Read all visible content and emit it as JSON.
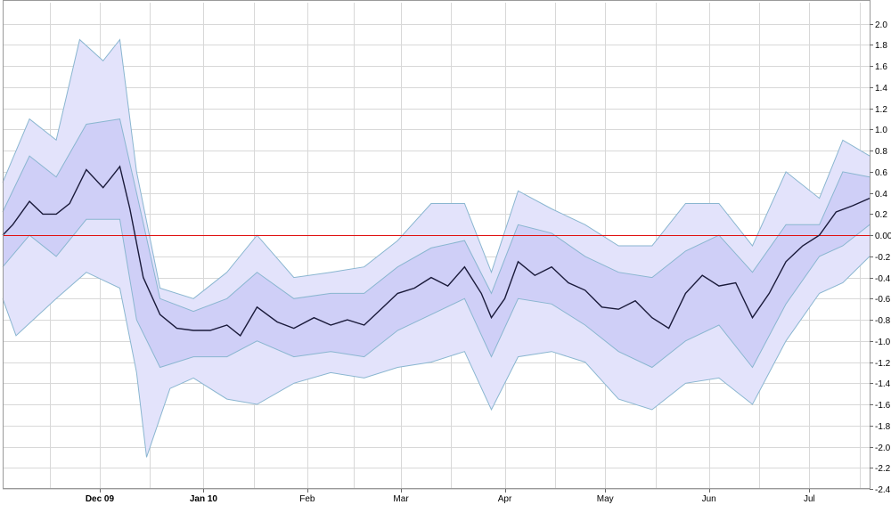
{
  "chart_data": {
    "type": "area",
    "title": "",
    "xlabel": "",
    "ylabel": "",
    "x_domain": [
      "2009-11-02",
      "2010-07-19"
    ],
    "ylim": [
      -2.4,
      2.2
    ],
    "yticks": [
      2.0,
      1.8,
      1.6,
      1.4,
      1.2,
      1.0,
      0.8,
      0.6,
      0.4,
      0.2,
      0.0,
      -0.2,
      -0.4,
      -0.6,
      -0.8,
      -1.0,
      -1.2,
      -1.4,
      -1.6,
      -1.8,
      -2.0,
      -2.2,
      -2.4
    ],
    "ytick_labels": [
      "2.0",
      "1.8",
      "1.6",
      "1.4",
      "1.2",
      "1.0",
      "0.8",
      "0.6",
      "0.4",
      "0.2",
      "0.00",
      "-0.2",
      "-0.4",
      "-0.6",
      "-0.8",
      "-1.0",
      "-1.2",
      "-1.4",
      "-1.6",
      "-1.8",
      "-2.0",
      "-2.2",
      "-2.4"
    ],
    "xticks": [
      {
        "date": "2009-12-01",
        "label": "Dec 09",
        "major": true
      },
      {
        "date": "2010-01-01",
        "label": "Jan 10",
        "major": true
      },
      {
        "date": "2010-02-01",
        "label": "Feb",
        "major": false
      },
      {
        "date": "2010-03-01",
        "label": "Mar",
        "major": false
      },
      {
        "date": "2010-04-01",
        "label": "Apr",
        "major": false
      },
      {
        "date": "2010-05-01",
        "label": "May",
        "major": false
      },
      {
        "date": "2010-06-01",
        "label": "Jun",
        "major": false
      },
      {
        "date": "2010-07-01",
        "label": "Jul",
        "major": false
      }
    ],
    "minor_gridlines_dates": [
      "2009-11-16",
      "2009-12-16",
      "2010-01-16",
      "2010-02-15",
      "2010-03-16",
      "2010-04-16",
      "2010-05-16",
      "2010-06-16",
      "2010-07-16"
    ],
    "zero_line": 0.0,
    "grid": true,
    "y_axis_side": "right",
    "colors": {
      "outer_band": "#e3e3fb",
      "inner_band": "#cfcff7",
      "band_edge": "#8ab6d0",
      "mean_line": "#1a1a3a",
      "zero_line": "#e01010",
      "grid": "#d8d8d8"
    },
    "series": [
      {
        "role": "mean",
        "points": [
          [
            "2009-11-02",
            0.0
          ],
          [
            "2009-11-05",
            0.1
          ],
          [
            "2009-11-10",
            0.32
          ],
          [
            "2009-11-14",
            0.2
          ],
          [
            "2009-11-18",
            0.2
          ],
          [
            "2009-11-22",
            0.3
          ],
          [
            "2009-11-27",
            0.62
          ],
          [
            "2009-12-02",
            0.45
          ],
          [
            "2009-12-07",
            0.65
          ],
          [
            "2009-12-10",
            0.25
          ],
          [
            "2009-12-14",
            -0.4
          ],
          [
            "2009-12-19",
            -0.75
          ],
          [
            "2009-12-24",
            -0.88
          ],
          [
            "2009-12-29",
            -0.9
          ],
          [
            "2010-01-03",
            -0.9
          ],
          [
            "2010-01-08",
            -0.85
          ],
          [
            "2010-01-12",
            -0.95
          ],
          [
            "2010-01-17",
            -0.68
          ],
          [
            "2010-01-23",
            -0.82
          ],
          [
            "2010-01-28",
            -0.88
          ],
          [
            "2010-02-03",
            -0.78
          ],
          [
            "2010-02-08",
            -0.85
          ],
          [
            "2010-02-13",
            -0.8
          ],
          [
            "2010-02-18",
            -0.85
          ],
          [
            "2010-02-23",
            -0.7
          ],
          [
            "2010-02-28",
            -0.55
          ],
          [
            "2010-03-05",
            -0.5
          ],
          [
            "2010-03-10",
            -0.4
          ],
          [
            "2010-03-15",
            -0.48
          ],
          [
            "2010-03-20",
            -0.3
          ],
          [
            "2010-03-25",
            -0.55
          ],
          [
            "2010-03-28",
            -0.78
          ],
          [
            "2010-04-01",
            -0.6
          ],
          [
            "2010-04-05",
            -0.25
          ],
          [
            "2010-04-10",
            -0.38
          ],
          [
            "2010-04-15",
            -0.3
          ],
          [
            "2010-04-20",
            -0.45
          ],
          [
            "2010-04-25",
            -0.52
          ],
          [
            "2010-04-30",
            -0.68
          ],
          [
            "2010-05-05",
            -0.7
          ],
          [
            "2010-05-10",
            -0.62
          ],
          [
            "2010-05-15",
            -0.78
          ],
          [
            "2010-05-20",
            -0.88
          ],
          [
            "2010-05-25",
            -0.55
          ],
          [
            "2010-05-30",
            -0.38
          ],
          [
            "2010-06-04",
            -0.48
          ],
          [
            "2010-06-09",
            -0.45
          ],
          [
            "2010-06-14",
            -0.78
          ],
          [
            "2010-06-19",
            -0.55
          ],
          [
            "2010-06-24",
            -0.25
          ],
          [
            "2010-06-29",
            -0.1
          ],
          [
            "2010-07-04",
            0.0
          ],
          [
            "2010-07-09",
            0.22
          ],
          [
            "2010-07-14",
            0.28
          ],
          [
            "2010-07-19",
            0.35
          ]
        ]
      },
      {
        "role": "inner_band",
        "upper": [
          [
            "2009-11-02",
            0.22
          ],
          [
            "2009-11-10",
            0.75
          ],
          [
            "2009-11-18",
            0.55
          ],
          [
            "2009-11-27",
            1.05
          ],
          [
            "2009-12-07",
            1.1
          ],
          [
            "2009-12-12",
            0.4
          ],
          [
            "2009-12-19",
            -0.6
          ],
          [
            "2009-12-29",
            -0.72
          ],
          [
            "2010-01-08",
            -0.6
          ],
          [
            "2010-01-17",
            -0.35
          ],
          [
            "2010-01-28",
            -0.6
          ],
          [
            "2010-02-08",
            -0.55
          ],
          [
            "2010-02-18",
            -0.55
          ],
          [
            "2010-02-28",
            -0.3
          ],
          [
            "2010-03-10",
            -0.12
          ],
          [
            "2010-03-20",
            -0.05
          ],
          [
            "2010-03-28",
            -0.55
          ],
          [
            "2010-04-05",
            0.1
          ],
          [
            "2010-04-15",
            0.02
          ],
          [
            "2010-04-25",
            -0.2
          ],
          [
            "2010-05-05",
            -0.35
          ],
          [
            "2010-05-15",
            -0.4
          ],
          [
            "2010-05-25",
            -0.15
          ],
          [
            "2010-06-04",
            0.0
          ],
          [
            "2010-06-14",
            -0.35
          ],
          [
            "2010-06-24",
            0.1
          ],
          [
            "2010-07-04",
            0.1
          ],
          [
            "2010-07-11",
            0.6
          ],
          [
            "2010-07-19",
            0.55
          ]
        ],
        "lower": [
          [
            "2009-11-02",
            -0.3
          ],
          [
            "2009-11-10",
            0.0
          ],
          [
            "2009-11-18",
            -0.2
          ],
          [
            "2009-11-27",
            0.15
          ],
          [
            "2009-12-07",
            0.15
          ],
          [
            "2009-12-12",
            -0.8
          ],
          [
            "2009-12-19",
            -1.25
          ],
          [
            "2009-12-29",
            -1.15
          ],
          [
            "2010-01-08",
            -1.15
          ],
          [
            "2010-01-17",
            -1.0
          ],
          [
            "2010-01-28",
            -1.15
          ],
          [
            "2010-02-08",
            -1.1
          ],
          [
            "2010-02-18",
            -1.15
          ],
          [
            "2010-02-28",
            -0.9
          ],
          [
            "2010-03-10",
            -0.75
          ],
          [
            "2010-03-20",
            -0.6
          ],
          [
            "2010-03-28",
            -1.15
          ],
          [
            "2010-04-05",
            -0.6
          ],
          [
            "2010-04-15",
            -0.65
          ],
          [
            "2010-04-25",
            -0.85
          ],
          [
            "2010-05-05",
            -1.1
          ],
          [
            "2010-05-15",
            -1.25
          ],
          [
            "2010-05-25",
            -1.0
          ],
          [
            "2010-06-04",
            -0.85
          ],
          [
            "2010-06-14",
            -1.25
          ],
          [
            "2010-06-24",
            -0.65
          ],
          [
            "2010-07-04",
            -0.2
          ],
          [
            "2010-07-11",
            -0.1
          ],
          [
            "2010-07-19",
            0.1
          ]
        ]
      },
      {
        "role": "outer_band",
        "upper": [
          [
            "2009-11-02",
            0.5
          ],
          [
            "2009-11-10",
            1.1
          ],
          [
            "2009-11-18",
            0.9
          ],
          [
            "2009-11-25",
            1.85
          ],
          [
            "2009-12-02",
            1.65
          ],
          [
            "2009-12-07",
            1.85
          ],
          [
            "2009-12-12",
            0.6
          ],
          [
            "2009-12-19",
            -0.5
          ],
          [
            "2009-12-29",
            -0.6
          ],
          [
            "2010-01-08",
            -0.35
          ],
          [
            "2010-01-17",
            -0.0
          ],
          [
            "2010-01-28",
            -0.4
          ],
          [
            "2010-02-08",
            -0.35
          ],
          [
            "2010-02-18",
            -0.3
          ],
          [
            "2010-02-28",
            -0.05
          ],
          [
            "2010-03-10",
            0.3
          ],
          [
            "2010-03-20",
            0.3
          ],
          [
            "2010-03-28",
            -0.35
          ],
          [
            "2010-04-05",
            0.42
          ],
          [
            "2010-04-15",
            0.25
          ],
          [
            "2010-04-25",
            0.1
          ],
          [
            "2010-05-05",
            -0.1
          ],
          [
            "2010-05-15",
            -0.1
          ],
          [
            "2010-05-25",
            0.3
          ],
          [
            "2010-06-04",
            0.3
          ],
          [
            "2010-06-14",
            -0.1
          ],
          [
            "2010-06-24",
            0.6
          ],
          [
            "2010-07-04",
            0.35
          ],
          [
            "2010-07-11",
            0.9
          ],
          [
            "2010-07-19",
            0.75
          ]
        ],
        "lower": [
          [
            "2009-11-02",
            -0.6
          ],
          [
            "2009-11-06",
            -0.95
          ],
          [
            "2009-11-18",
            -0.6
          ],
          [
            "2009-11-27",
            -0.35
          ],
          [
            "2009-12-07",
            -0.5
          ],
          [
            "2009-12-12",
            -1.3
          ],
          [
            "2009-12-15",
            -2.1
          ],
          [
            "2009-12-22",
            -1.45
          ],
          [
            "2009-12-29",
            -1.35
          ],
          [
            "2010-01-08",
            -1.55
          ],
          [
            "2010-01-17",
            -1.6
          ],
          [
            "2010-01-28",
            -1.4
          ],
          [
            "2010-02-08",
            -1.3
          ],
          [
            "2010-02-18",
            -1.35
          ],
          [
            "2010-02-28",
            -1.25
          ],
          [
            "2010-03-10",
            -1.2
          ],
          [
            "2010-03-20",
            -1.1
          ],
          [
            "2010-03-28",
            -1.65
          ],
          [
            "2010-04-05",
            -1.15
          ],
          [
            "2010-04-15",
            -1.1
          ],
          [
            "2010-04-25",
            -1.2
          ],
          [
            "2010-05-05",
            -1.55
          ],
          [
            "2010-05-15",
            -1.65
          ],
          [
            "2010-05-25",
            -1.4
          ],
          [
            "2010-06-04",
            -1.35
          ],
          [
            "2010-06-14",
            -1.6
          ],
          [
            "2010-06-24",
            -1.0
          ],
          [
            "2010-07-04",
            -0.55
          ],
          [
            "2010-07-11",
            -0.45
          ],
          [
            "2010-07-19",
            -0.2
          ]
        ]
      }
    ]
  }
}
